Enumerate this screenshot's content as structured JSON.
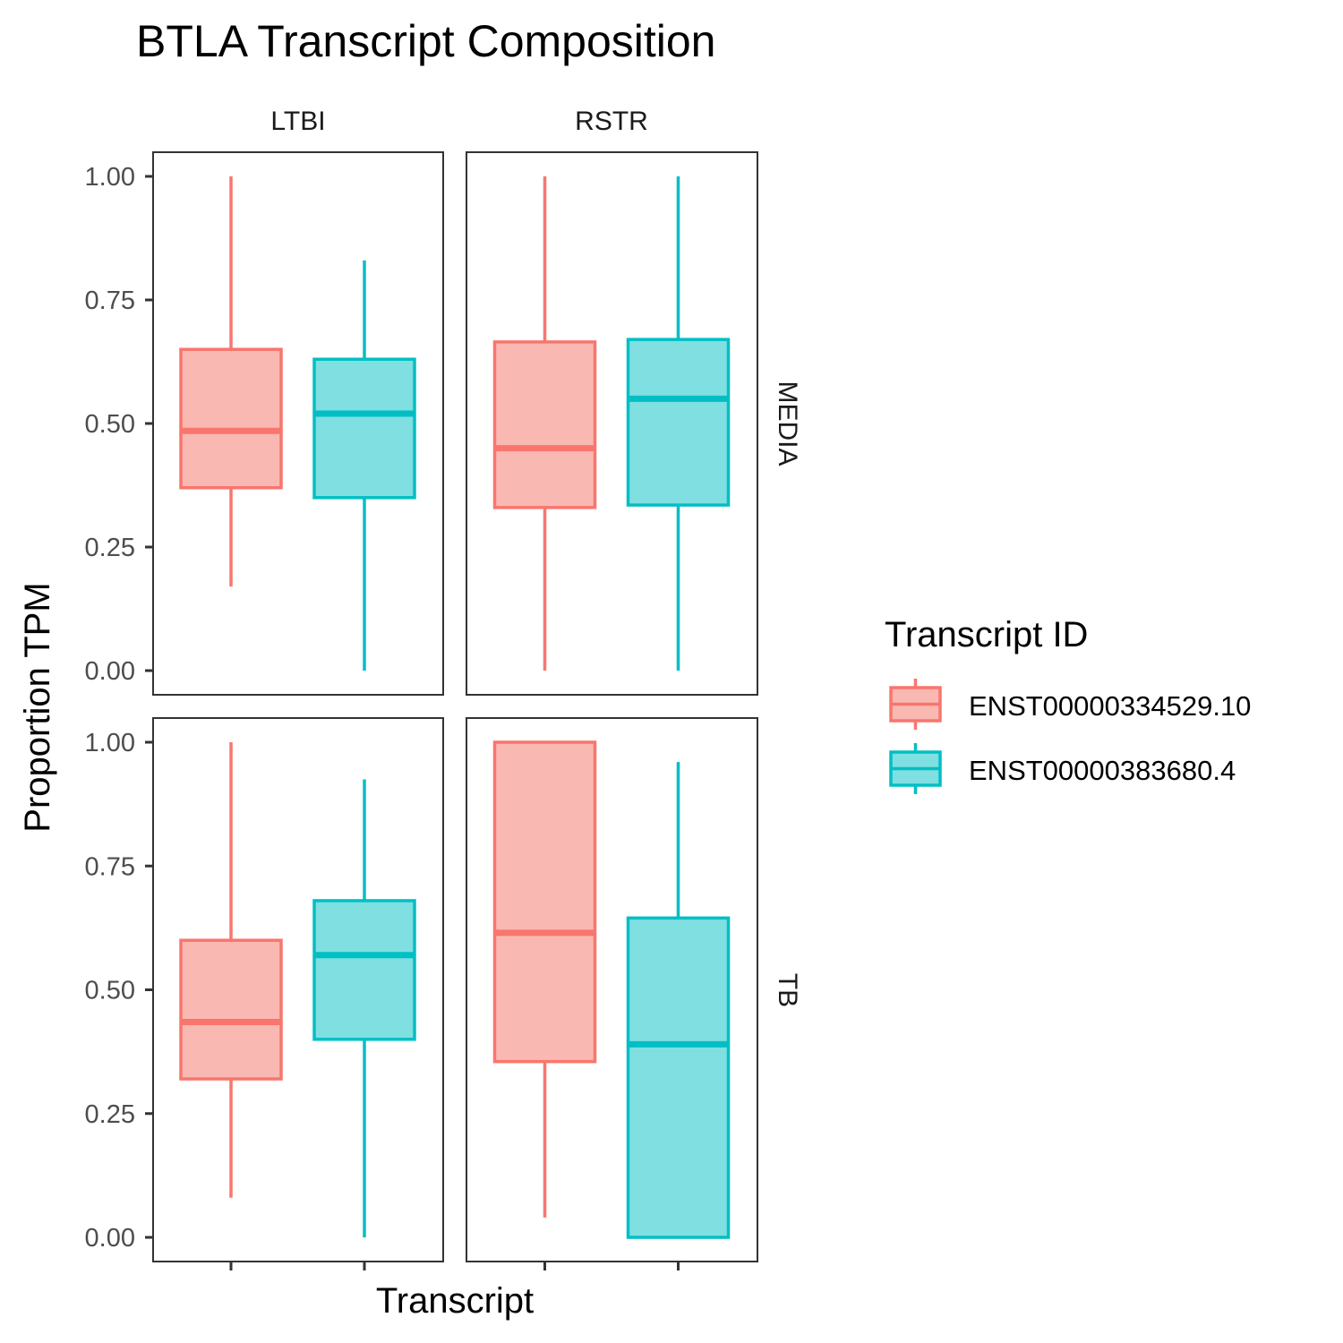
{
  "title": "BTLA Transcript Composition",
  "xlabel": "Transcript",
  "ylabel": "Proportion TPM",
  "legend": {
    "title": "Transcript ID",
    "placement": "right",
    "items": [
      {
        "label": "ENST00000334529.10",
        "stroke": "#F8766D",
        "fill": "#FAB8B3"
      },
      {
        "label": "ENST00000383680.4",
        "stroke": "#00BFC4",
        "fill": "#80DFE1"
      }
    ]
  },
  "chart_data": {
    "type": "boxplot",
    "facet_cols": [
      "LTBI",
      "RSTR"
    ],
    "facet_rows": [
      "MEDIA",
      "TB"
    ],
    "ylim": [
      0,
      1
    ],
    "yticks": [
      "0.00",
      "0.25",
      "0.50",
      "0.75",
      "1.00"
    ],
    "ytick_values": [
      0,
      0.25,
      0.5,
      0.75,
      1.0
    ],
    "series": [
      "ENST00000334529.10",
      "ENST00000383680.4"
    ],
    "panels": [
      {
        "col": "LTBI",
        "row": "MEDIA",
        "boxes": [
          {
            "series": "ENST00000334529.10",
            "min": 0.17,
            "q1": 0.37,
            "median": 0.485,
            "q3": 0.65,
            "max": 1.0
          },
          {
            "series": "ENST00000383680.4",
            "min": 0.0,
            "q1": 0.35,
            "median": 0.52,
            "q3": 0.63,
            "max": 0.83
          }
        ]
      },
      {
        "col": "RSTR",
        "row": "MEDIA",
        "boxes": [
          {
            "series": "ENST00000334529.10",
            "min": 0.0,
            "q1": 0.33,
            "median": 0.45,
            "q3": 0.665,
            "max": 1.0
          },
          {
            "series": "ENST00000383680.4",
            "min": 0.0,
            "q1": 0.335,
            "median": 0.55,
            "q3": 0.67,
            "max": 1.0
          }
        ]
      },
      {
        "col": "LTBI",
        "row": "TB",
        "boxes": [
          {
            "series": "ENST00000334529.10",
            "min": 0.08,
            "q1": 0.32,
            "median": 0.435,
            "q3": 0.6,
            "max": 1.0
          },
          {
            "series": "ENST00000383680.4",
            "min": 0.0,
            "q1": 0.4,
            "median": 0.57,
            "q3": 0.68,
            "max": 0.925
          }
        ]
      },
      {
        "col": "RSTR",
        "row": "TB",
        "boxes": [
          {
            "series": "ENST00000334529.10",
            "min": 0.04,
            "q1": 0.355,
            "median": 0.615,
            "q3": 1.0,
            "max": 1.0
          },
          {
            "series": "ENST00000383680.4",
            "min": 0.0,
            "q1": 0.0,
            "median": 0.39,
            "q3": 0.645,
            "max": 0.96
          }
        ]
      }
    ]
  }
}
